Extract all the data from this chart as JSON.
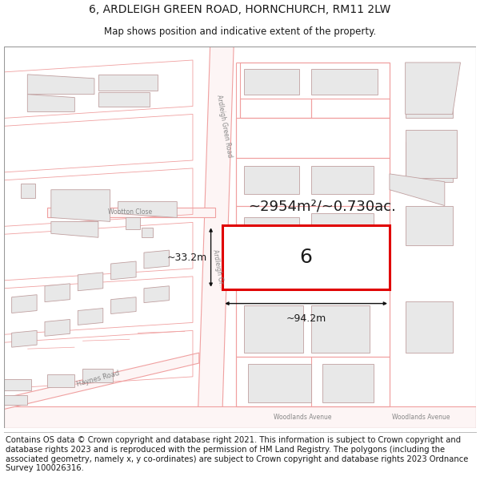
{
  "title_line1": "6, ARDLEIGH GREEN ROAD, HORNCHURCH, RM11 2LW",
  "title_line2": "Map shows position and indicative extent of the property.",
  "area_text": "~2954m²/~0.730ac.",
  "dim_width": "~94.2m",
  "dim_height": "~33.2m",
  "plot_label": "6",
  "footer_text": "Contains OS data © Crown copyright and database right 2021. This information is subject to Crown copyright and database rights 2023 and is reproduced with the permission of HM Land Registry. The polygons (including the associated geometry, namely x, y co-ordinates) are subject to Crown copyright and database rights 2023 Ordnance Survey 100026316.",
  "bg_color": "#ffffff",
  "map_bg": "#ffffff",
  "road_line_color": "#f0a0a0",
  "road_line_lw": 0.8,
  "building_fill": "#e8e8e8",
  "building_outline": "#c0a0a0",
  "building_lw": 0.6,
  "highlight_color": "#e00000",
  "highlight_lw": 2.2,
  "text_color": "#1a1a1a",
  "label_color": "#888888",
  "arrow_color": "#111111",
  "title_fontsize": 10,
  "subtitle_fontsize": 8.5,
  "footer_fontsize": 7.2,
  "area_fontsize": 13,
  "dim_fontsize": 9,
  "plot_label_fontsize": 18,
  "road_label_fontsize": 5.5
}
